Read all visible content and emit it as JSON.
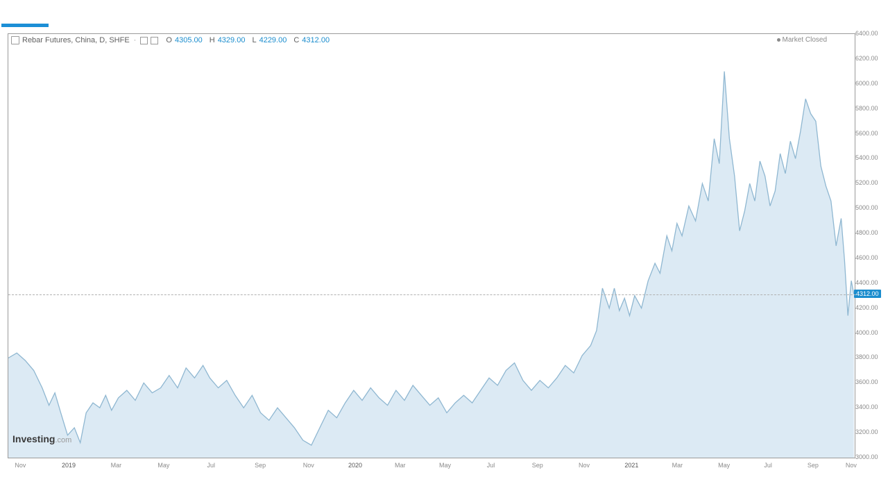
{
  "accent_color": "#1c8fd6",
  "header": {
    "title": "Rebar Futures, China, D, SHFE",
    "ohlc": {
      "O_label": "O",
      "O": "4305.00",
      "H_label": "H",
      "H": "4329.00",
      "L_label": "L",
      "L": "4229.00",
      "C_label": "C",
      "C": "4312.00"
    },
    "market_status": "Market Closed"
  },
  "chart": {
    "type": "area",
    "line_color": "#8fb7d1",
    "fill_color": "#d6e6f2",
    "fill_opacity": 0.85,
    "background": "#ffffff",
    "border_color": "#9a9a9a",
    "last_price": 4312.0,
    "y_axis": {
      "min": 3000,
      "max": 6400,
      "step": 200,
      "ticks": [
        3000,
        3200,
        3400,
        3600,
        3800,
        4000,
        4200,
        4400,
        4600,
        4800,
        5000,
        5200,
        5400,
        5600,
        5800,
        6000,
        6200,
        6400
      ],
      "label_color": "#8a8a8a",
      "fontsize": 9
    },
    "x_axis": {
      "ticks": [
        {
          "pos": 0.015,
          "label": "Nov"
        },
        {
          "pos": 0.072,
          "label": "2019",
          "year": true
        },
        {
          "pos": 0.128,
          "label": "Mar"
        },
        {
          "pos": 0.184,
          "label": "May"
        },
        {
          "pos": 0.24,
          "label": "Jul"
        },
        {
          "pos": 0.298,
          "label": "Sep"
        },
        {
          "pos": 0.355,
          "label": "Nov"
        },
        {
          "pos": 0.41,
          "label": "2020",
          "year": true
        },
        {
          "pos": 0.463,
          "label": "Mar"
        },
        {
          "pos": 0.516,
          "label": "May"
        },
        {
          "pos": 0.57,
          "label": "Jul"
        },
        {
          "pos": 0.625,
          "label": "Sep"
        },
        {
          "pos": 0.68,
          "label": "Nov"
        },
        {
          "pos": 0.736,
          "label": "2021",
          "year": true
        },
        {
          "pos": 0.79,
          "label": "Mar"
        },
        {
          "pos": 0.845,
          "label": "May"
        },
        {
          "pos": 0.897,
          "label": "Jul"
        },
        {
          "pos": 0.95,
          "label": "Sep"
        },
        {
          "pos": 0.995,
          "label": "Nov"
        }
      ],
      "label_color": "#8a8a8a",
      "fontsize": 9
    },
    "series": [
      [
        0.0,
        3800
      ],
      [
        0.01,
        3840
      ],
      [
        0.02,
        3780
      ],
      [
        0.03,
        3700
      ],
      [
        0.04,
        3560
      ],
      [
        0.048,
        3420
      ],
      [
        0.055,
        3520
      ],
      [
        0.062,
        3360
      ],
      [
        0.07,
        3180
      ],
      [
        0.078,
        3240
      ],
      [
        0.085,
        3120
      ],
      [
        0.092,
        3360
      ],
      [
        0.1,
        3440
      ],
      [
        0.108,
        3400
      ],
      [
        0.115,
        3500
      ],
      [
        0.122,
        3380
      ],
      [
        0.13,
        3480
      ],
      [
        0.14,
        3540
      ],
      [
        0.15,
        3460
      ],
      [
        0.16,
        3600
      ],
      [
        0.17,
        3520
      ],
      [
        0.18,
        3560
      ],
      [
        0.19,
        3660
      ],
      [
        0.2,
        3560
      ],
      [
        0.21,
        3720
      ],
      [
        0.22,
        3640
      ],
      [
        0.23,
        3740
      ],
      [
        0.238,
        3640
      ],
      [
        0.248,
        3560
      ],
      [
        0.258,
        3620
      ],
      [
        0.268,
        3500
      ],
      [
        0.278,
        3400
      ],
      [
        0.288,
        3500
      ],
      [
        0.298,
        3360
      ],
      [
        0.308,
        3300
      ],
      [
        0.318,
        3400
      ],
      [
        0.328,
        3320
      ],
      [
        0.338,
        3240
      ],
      [
        0.348,
        3140
      ],
      [
        0.358,
        3100
      ],
      [
        0.368,
        3240
      ],
      [
        0.378,
        3380
      ],
      [
        0.388,
        3320
      ],
      [
        0.398,
        3440
      ],
      [
        0.408,
        3540
      ],
      [
        0.418,
        3460
      ],
      [
        0.428,
        3560
      ],
      [
        0.438,
        3480
      ],
      [
        0.448,
        3420
      ],
      [
        0.458,
        3540
      ],
      [
        0.468,
        3460
      ],
      [
        0.478,
        3580
      ],
      [
        0.488,
        3500
      ],
      [
        0.498,
        3420
      ],
      [
        0.508,
        3480
      ],
      [
        0.518,
        3360
      ],
      [
        0.528,
        3440
      ],
      [
        0.538,
        3500
      ],
      [
        0.548,
        3440
      ],
      [
        0.558,
        3540
      ],
      [
        0.568,
        3640
      ],
      [
        0.578,
        3580
      ],
      [
        0.588,
        3700
      ],
      [
        0.598,
        3760
      ],
      [
        0.608,
        3620
      ],
      [
        0.618,
        3540
      ],
      [
        0.628,
        3620
      ],
      [
        0.638,
        3560
      ],
      [
        0.648,
        3640
      ],
      [
        0.658,
        3740
      ],
      [
        0.668,
        3680
      ],
      [
        0.678,
        3820
      ],
      [
        0.688,
        3900
      ],
      [
        0.695,
        4020
      ],
      [
        0.702,
        4360
      ],
      [
        0.71,
        4200
      ],
      [
        0.716,
        4360
      ],
      [
        0.722,
        4180
      ],
      [
        0.728,
        4280
      ],
      [
        0.734,
        4140
      ],
      [
        0.74,
        4300
      ],
      [
        0.748,
        4200
      ],
      [
        0.756,
        4420
      ],
      [
        0.764,
        4560
      ],
      [
        0.77,
        4480
      ],
      [
        0.778,
        4780
      ],
      [
        0.784,
        4660
      ],
      [
        0.79,
        4880
      ],
      [
        0.796,
        4780
      ],
      [
        0.804,
        5020
      ],
      [
        0.812,
        4900
      ],
      [
        0.82,
        5200
      ],
      [
        0.827,
        5060
      ],
      [
        0.834,
        5560
      ],
      [
        0.84,
        5360
      ],
      [
        0.846,
        6100
      ],
      [
        0.852,
        5560
      ],
      [
        0.858,
        5260
      ],
      [
        0.864,
        4820
      ],
      [
        0.87,
        4980
      ],
      [
        0.876,
        5200
      ],
      [
        0.882,
        5060
      ],
      [
        0.888,
        5380
      ],
      [
        0.894,
        5260
      ],
      [
        0.9,
        5020
      ],
      [
        0.906,
        5140
      ],
      [
        0.912,
        5440
      ],
      [
        0.918,
        5280
      ],
      [
        0.924,
        5540
      ],
      [
        0.93,
        5400
      ],
      [
        0.936,
        5620
      ],
      [
        0.942,
        5880
      ],
      [
        0.948,
        5760
      ],
      [
        0.954,
        5700
      ],
      [
        0.96,
        5340
      ],
      [
        0.966,
        5180
      ],
      [
        0.972,
        5060
      ],
      [
        0.978,
        4700
      ],
      [
        0.984,
        4920
      ],
      [
        0.988,
        4580
      ],
      [
        0.992,
        4140
      ],
      [
        0.996,
        4420
      ],
      [
        0.999,
        4312
      ]
    ]
  },
  "logo": {
    "text1": "Investing",
    "text2": ".com"
  }
}
